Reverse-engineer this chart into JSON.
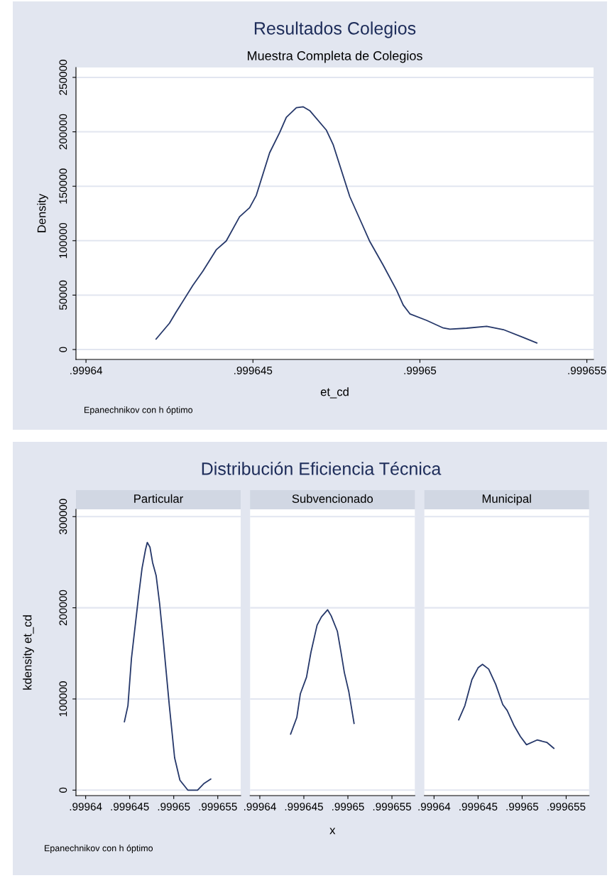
{
  "chart_data": [
    {
      "type": "line",
      "title": "Resultados Colegios",
      "subtitle": "Muestra Completa de Colegios",
      "xlabel": "et_cd",
      "ylabel": "Density",
      "annotations": [
        "Epanechnikov con h óptimo"
      ],
      "x": [
        0.9996421,
        0.9996425,
        0.9996427,
        0.9996432,
        0.9996435,
        0.9996439,
        0.9996442,
        0.9996446,
        0.9996449,
        0.9996451,
        0.9996455,
        0.9996458,
        0.999646,
        0.9996463,
        0.9996465,
        0.9996467,
        0.9996472,
        0.9996474,
        0.9996479,
        0.9996485,
        0.9996489,
        0.9996493,
        0.9996495,
        0.9996497,
        0.9996502,
        0.9996507,
        0.9996509,
        0.9996514,
        0.999652,
        0.9996525,
        0.9996531,
        0.9996535
      ],
      "series": [
        {
          "color": "#26386a",
          "values": [
            9600,
            24200,
            34400,
            58900,
            72000,
            91600,
            99700,
            122000,
            130300,
            141600,
            180800,
            199300,
            213400,
            222100,
            223000,
            219500,
            201500,
            188400,
            140500,
            99200,
            77500,
            54600,
            40900,
            32800,
            26800,
            19800,
            18700,
            19600,
            21300,
            18300,
            11100,
            6100
          ]
        }
      ],
      "xlim": [
        0.9996397,
        0.9996552
      ],
      "ylim": [
        -9100,
        259100
      ],
      "xticks": [
        {
          "value": 0.99964,
          "label": ".99964"
        },
        {
          "value": 0.999645,
          "label": ".999645"
        },
        {
          "value": 0.99965,
          "label": ".99965"
        },
        {
          "value": 0.999655,
          "label": ".999655"
        }
      ],
      "yticks": [
        0,
        50000,
        100000,
        150000,
        200000,
        250000
      ],
      "grid": "y",
      "legend": false,
      "marker": "none",
      "line_style": "solid"
    },
    {
      "type": "line",
      "title": "Distribución Eficiencia Técnica",
      "subtitle": "Particular",
      "ylabel": "kdensity et_cd",
      "annotations": [
        "Epanechnikov con h óptimo"
      ],
      "x": [
        0.9996444,
        0.9996448,
        0.9996452,
        0.999646,
        0.9996464,
        0.9996468,
        0.999647,
        0.9996473,
        0.9996476,
        0.999648,
        0.9996484,
        0.9996488,
        0.9996495,
        0.9996501,
        0.9996507,
        0.9996516,
        0.9996527,
        0.9996534,
        0.9996542
      ],
      "series": [
        {
          "color": "#26386a",
          "values": [
            75000,
            92700,
            144500,
            212000,
            243200,
            264000,
            271700,
            266500,
            249600,
            235400,
            204200,
            165300,
            92700,
            35500,
            10900,
            0,
            0,
            7000,
            12100
          ]
        }
      ],
      "xlim": [
        0.9996389,
        0.9996576
      ],
      "ylim": [
        -6000,
        308000
      ],
      "xticks": [
        {
          "value": 0.99964,
          "label": ".99964"
        },
        {
          "value": 0.999645,
          "label": ".999645"
        },
        {
          "value": 0.99965,
          "label": ".99965"
        },
        {
          "value": 0.999655,
          "label": ".999655"
        }
      ],
      "yticks": [
        0,
        100000,
        200000,
        300000
      ],
      "grid": "y",
      "legend": false,
      "marker": "none",
      "line_style": "solid"
    },
    {
      "type": "line",
      "subtitle": "Subvencionado",
      "xlabel": "x",
      "x": [
        0.9996435,
        0.9996442,
        0.9996446,
        0.9996453,
        0.9996458,
        0.9996465,
        0.999647,
        0.9996477,
        0.9996481,
        0.9996488,
        0.9996492,
        0.9996496,
        0.9996501,
        0.9996507
      ],
      "series": [
        {
          "color": "#26386a",
          "values": [
            61500,
            79700,
            105600,
            123800,
            151000,
            180900,
            190000,
            197800,
            191200,
            174400,
            152300,
            128900,
            108200,
            73200
          ]
        }
      ],
      "xlim": [
        0.9996389,
        0.9996576
      ],
      "ylim": [
        -6000,
        308000
      ],
      "xticks": [
        {
          "value": 0.99964,
          "label": ".99964"
        },
        {
          "value": 0.999645,
          "label": ".999645"
        },
        {
          "value": 0.99965,
          "label": ".99965"
        },
        {
          "value": 0.999655,
          "label": ".999655"
        }
      ],
      "yticks": [
        0,
        100000,
        200000,
        300000
      ],
      "grid": "y",
      "legend": false,
      "marker": "none",
      "line_style": "solid",
      "tick_labels": "x"
    },
    {
      "type": "line",
      "subtitle": "Municipal",
      "x": [
        0.9996428,
        0.9996435,
        0.9996443,
        0.999645,
        0.9996455,
        0.9996462,
        0.999647,
        0.9996478,
        0.9996483,
        0.9996491,
        0.9996498,
        0.9996505,
        0.9996517,
        0.9996528,
        0.9996536
      ],
      "series": [
        {
          "color": "#26386a",
          "values": [
            77100,
            92700,
            121200,
            134200,
            138000,
            132800,
            116000,
            93900,
            87400,
            70500,
            58900,
            49800,
            55000,
            52400,
            45900
          ]
        }
      ],
      "xlim": [
        0.9996389,
        0.9996576
      ],
      "ylim": [
        -6000,
        308000
      ],
      "xticks": [
        {
          "value": 0.99964,
          "label": ".99964"
        },
        {
          "value": 0.999645,
          "label": ".999645"
        },
        {
          "value": 0.99965,
          "label": ".99965"
        },
        {
          "value": 0.999655,
          "label": ".999655"
        }
      ],
      "yticks": [
        0,
        100000,
        200000,
        300000
      ],
      "grid": "y",
      "legend": false,
      "marker": "none",
      "line_style": "solid",
      "tick_labels": "x"
    }
  ]
}
